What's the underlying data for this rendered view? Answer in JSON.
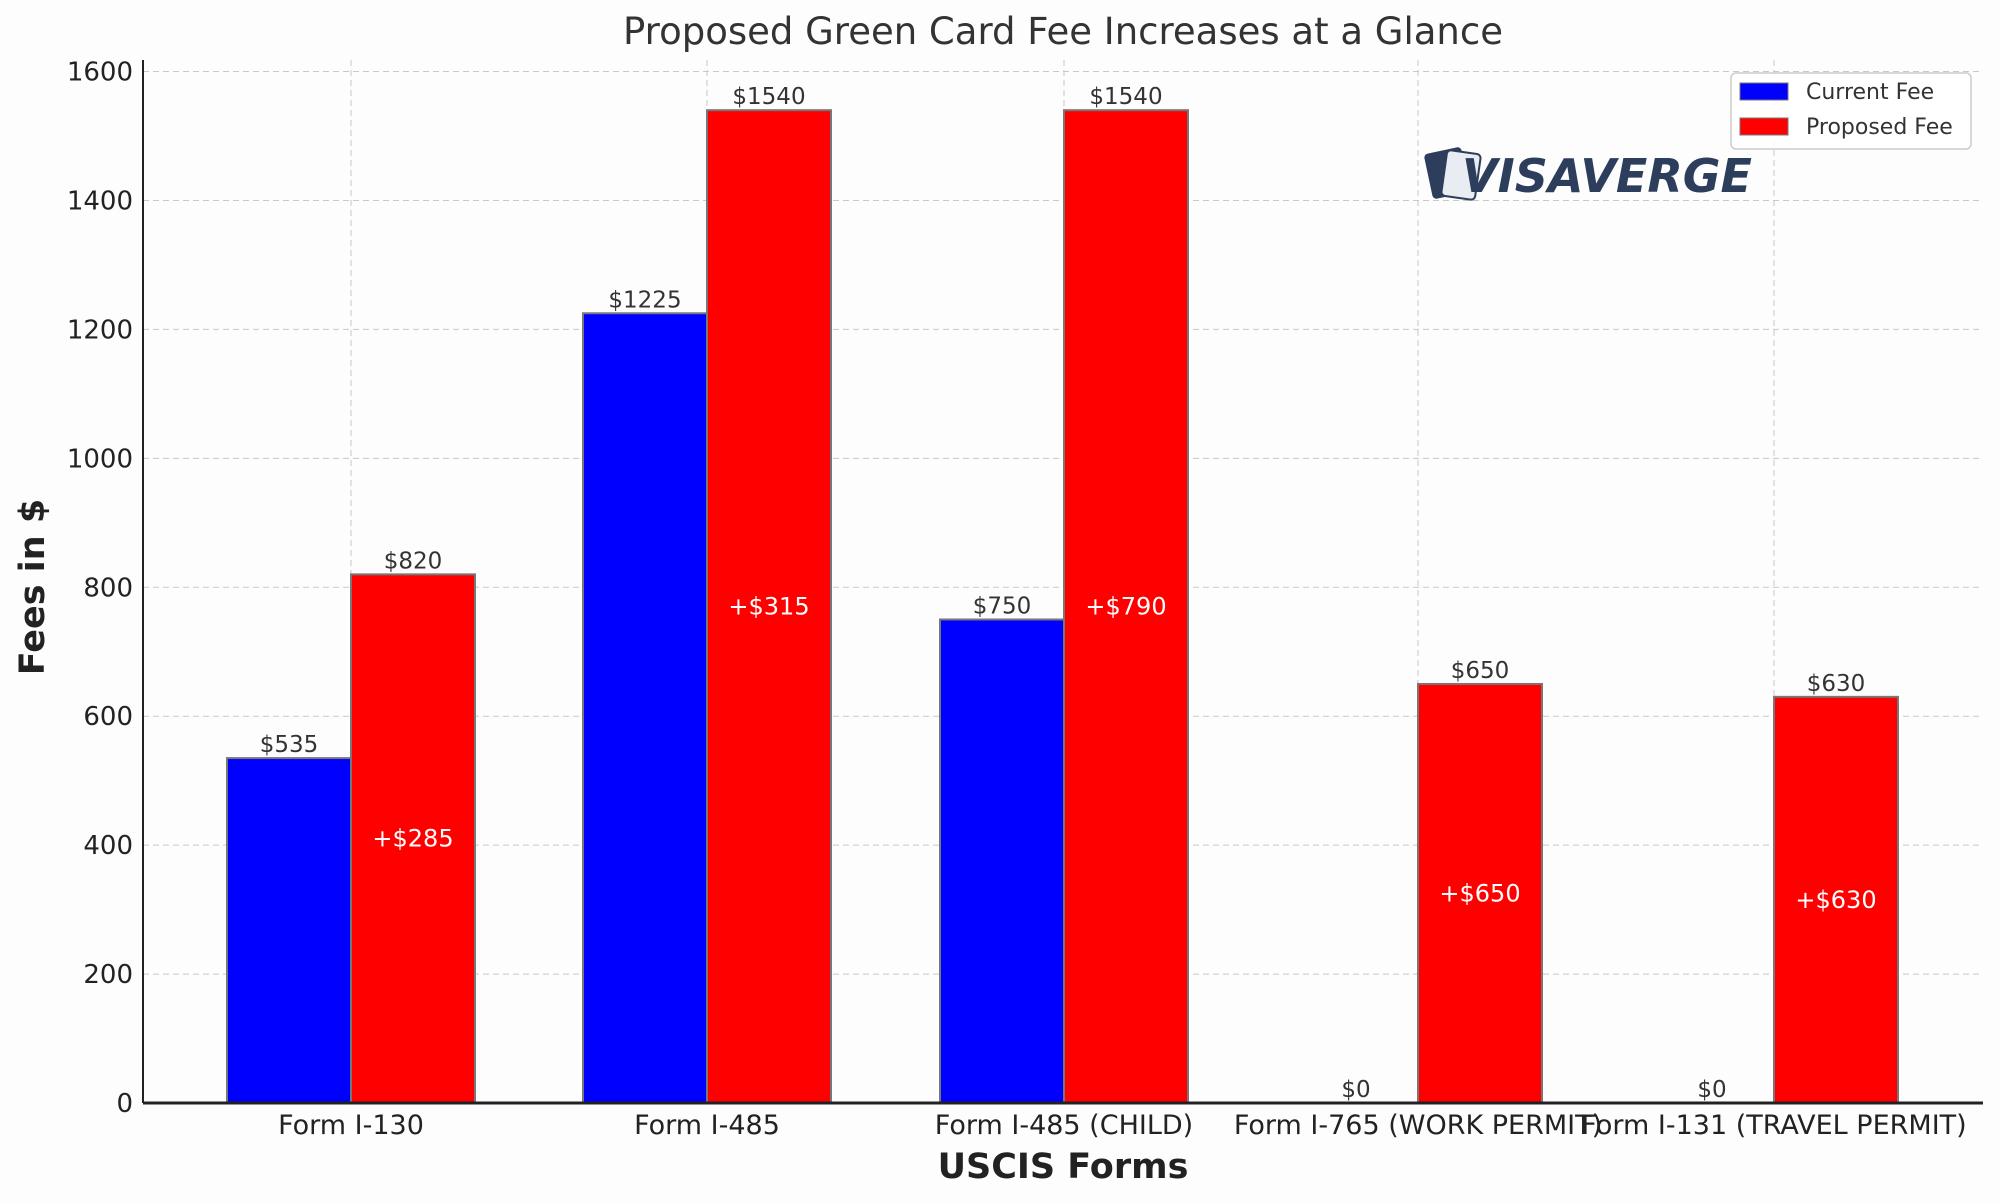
{
  "chart_data": {
    "type": "bar",
    "title": "Proposed Green Card Fee Increases at a Glance",
    "xlabel": "USCIS Forms",
    "ylabel": "Fees in $",
    "ylim": [
      0,
      1620
    ],
    "yticks": [
      0,
      200,
      400,
      600,
      800,
      1000,
      1200,
      1400,
      1600
    ],
    "grid": true,
    "legend_position": "top-right",
    "categories": [
      "Form I-130",
      "Form I-485",
      "Form I-485 (CHILD)",
      "Form I-765 (WORK PERMIT)",
      "Form I-131 (TRAVEL PERMIT)"
    ],
    "series": [
      {
        "name": "Current Fee",
        "color": "#0000ff",
        "values": [
          535,
          1225,
          750,
          0,
          0
        ],
        "labels": [
          "$535",
          "$1225",
          "$750",
          "$0",
          "$0"
        ]
      },
      {
        "name": "Proposed Fee",
        "color": "#ff0000",
        "values": [
          820,
          1540,
          1540,
          650,
          630
        ],
        "labels": [
          "$820",
          "$1540",
          "$1540",
          "$650",
          "$630"
        ]
      }
    ],
    "annotations": [
      "+$285",
      "+$315",
      "+$790",
      "+$650",
      "+$630"
    ]
  },
  "watermark": "VISAVERGE"
}
